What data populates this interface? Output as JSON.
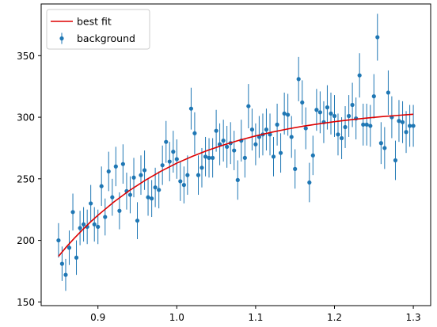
{
  "chart_data": {
    "type": "scatter",
    "title": "",
    "xlabel": "",
    "ylabel": "",
    "xlim": [
      0.828,
      1.322
    ],
    "ylim": [
      147,
      392
    ],
    "xticks": [
      0.9,
      1.0,
      1.1,
      1.2,
      1.3
    ],
    "xtick_labels": [
      "0.9",
      "1.0",
      "1.1",
      "1.2",
      "1.3"
    ],
    "yticks": [
      150,
      200,
      250,
      300,
      350
    ],
    "ytick_labels": [
      "150",
      "200",
      "250",
      "300",
      "350"
    ],
    "grid": false,
    "legend": {
      "placement": "top-left",
      "entries": [
        {
          "label": "best fit",
          "kind": "line",
          "color": "#dd0000"
        },
        {
          "label": "background",
          "kind": "errorbar-marker",
          "color": "#1f77b4"
        }
      ]
    },
    "series": [
      {
        "name": "background",
        "kind": "errorbar",
        "color": "#1f77b4",
        "x": [
          0.85,
          0.8545,
          0.8591,
          0.8636,
          0.8682,
          0.8727,
          0.8773,
          0.8818,
          0.8864,
          0.8909,
          0.8955,
          0.9,
          0.9045,
          0.9091,
          0.9136,
          0.9182,
          0.9227,
          0.9273,
          0.9318,
          0.9364,
          0.9409,
          0.9455,
          0.95,
          0.9545,
          0.9591,
          0.9636,
          0.9682,
          0.9727,
          0.9773,
          0.9818,
          0.9864,
          0.9909,
          0.9955,
          1.0,
          1.0045,
          1.0091,
          1.0136,
          1.0182,
          1.0227,
          1.0273,
          1.0318,
          1.0364,
          1.0409,
          1.0455,
          1.05,
          1.0545,
          1.0591,
          1.0636,
          1.0682,
          1.0727,
          1.0773,
          1.0818,
          1.0864,
          1.0909,
          1.0955,
          1.1,
          1.1045,
          1.1091,
          1.1136,
          1.1182,
          1.1227,
          1.1273,
          1.1318,
          1.1364,
          1.1409,
          1.1455,
          1.15,
          1.1545,
          1.1591,
          1.1636,
          1.1682,
          1.1727,
          1.1773,
          1.1818,
          1.1864,
          1.1909,
          1.1955,
          1.2,
          1.2045,
          1.2091,
          1.2136,
          1.2182,
          1.2227,
          1.2273,
          1.2318,
          1.2364,
          1.2409,
          1.2455,
          1.25,
          1.2545,
          1.2591,
          1.2636,
          1.2682,
          1.2727,
          1.2773,
          1.2818,
          1.2864,
          1.2909,
          1.2955,
          1.3
        ],
        "y": [
          200,
          181,
          172,
          194,
          223,
          186,
          210,
          213,
          211,
          230,
          213,
          211,
          244,
          219,
          256,
          235,
          260,
          224,
          262,
          240,
          237,
          251,
          216,
          253,
          257,
          235,
          234,
          243,
          241,
          261,
          280,
          264,
          272,
          266,
          248,
          245,
          253,
          307,
          287,
          253,
          259,
          268,
          267,
          267,
          289,
          278,
          281,
          276,
          279,
          273,
          249,
          281,
          267,
          309,
          290,
          278,
          284,
          286,
          290,
          286,
          268,
          294,
          271,
          303,
          302,
          284,
          258,
          331,
          312,
          291,
          247,
          269,
          306,
          304,
          296,
          308,
          303,
          301,
          286,
          283,
          292,
          301,
          310,
          299,
          334,
          294,
          294,
          293,
          317,
          365,
          279,
          275,
          320,
          300,
          265,
          297,
          296,
          288,
          293,
          293
        ],
        "yerr": [
          14,
          14,
          13,
          14,
          15,
          14,
          14,
          14,
          14,
          15,
          14,
          14,
          16,
          15,
          16,
          15,
          16,
          15,
          16,
          15,
          15,
          16,
          15,
          16,
          16,
          15,
          15,
          16,
          15,
          16,
          17,
          16,
          17,
          16,
          16,
          15,
          16,
          17,
          17,
          16,
          16,
          16,
          16,
          16,
          17,
          17,
          17,
          17,
          17,
          16,
          16,
          17,
          16,
          18,
          17,
          17,
          17,
          17,
          17,
          17,
          16,
          17,
          16,
          17,
          17,
          17,
          16,
          18,
          18,
          17,
          16,
          16,
          17,
          17,
          17,
          18,
          17,
          17,
          17,
          17,
          17,
          17,
          18,
          17,
          18,
          17,
          17,
          17,
          18,
          19,
          17,
          17,
          18,
          17,
          16,
          17,
          17,
          17,
          17,
          17
        ]
      },
      {
        "name": "best fit",
        "kind": "line",
        "color": "#dd0000",
        "x": [
          0.85,
          0.86,
          0.87,
          0.88,
          0.89,
          0.9,
          0.92,
          0.94,
          0.96,
          0.98,
          1.0,
          1.02,
          1.04,
          1.06,
          1.08,
          1.1,
          1.12,
          1.14,
          1.16,
          1.18,
          1.2,
          1.22,
          1.24,
          1.26,
          1.28,
          1.3
        ],
        "y": [
          187.0,
          194.7,
          201.7,
          208.3,
          214.6,
          220.4,
          231.1,
          240.5,
          248.8,
          256.2,
          262.7,
          268.3,
          273.3,
          277.6,
          281.5,
          284.8,
          287.8,
          290.4,
          292.7,
          294.6,
          296.4,
          297.9,
          299.3,
          300.5,
          301.5,
          302.4
        ]
      }
    ]
  }
}
